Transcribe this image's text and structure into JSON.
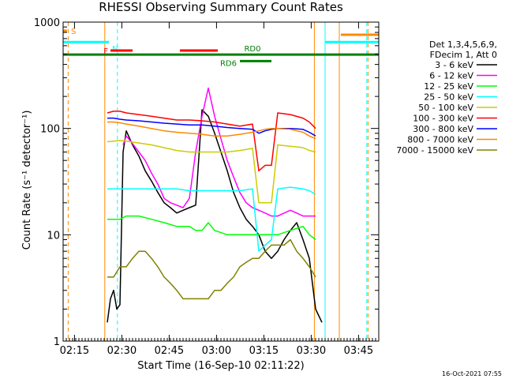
{
  "chart_data": {
    "type": "line",
    "title": "RHESSI Observing Summary Count Rates",
    "xlabel": "Start Time (16-Sep-10 02:11:22)",
    "ylabel": "Count Rate (s⁻¹ detector⁻¹)",
    "ylog": true,
    "ylim": [
      1,
      1000
    ],
    "xlim_minutes": [
      0,
      100
    ],
    "x_ticks": [
      {
        "label": "02:15",
        "t": 3.6
      },
      {
        "label": "02:30",
        "t": 18.6
      },
      {
        "label": "02:45",
        "t": 33.6
      },
      {
        "label": "03:00",
        "t": 48.6
      },
      {
        "label": "03:15",
        "t": 63.6
      },
      {
        "label": "03:30",
        "t": 78.6
      },
      {
        "label": "03:45",
        "t": 93.6
      }
    ],
    "y_ticks": [
      {
        "label": "1",
        "v": 1
      },
      {
        "label": "10",
        "v": 10
      },
      {
        "label": "100",
        "v": 100
      },
      {
        "label": "1000",
        "v": 1000
      }
    ],
    "legend_header": [
      "Det 1,3,4,5,6,9,",
      "FDecim 1, Att 0"
    ],
    "legend_placement": "right",
    "series": [
      {
        "name": "3 - 6 keV",
        "color": "#000000",
        "x": [
          14,
          15,
          16,
          17,
          18,
          19,
          20,
          22,
          24,
          26,
          28,
          30,
          32,
          34,
          36,
          38,
          40,
          42,
          44,
          46,
          48,
          50,
          52,
          54,
          56,
          58,
          60,
          62,
          64,
          66,
          68,
          70,
          72,
          74,
          76,
          78,
          80,
          82
        ],
        "y": [
          1.5,
          2.5,
          3,
          2,
          2.2,
          60,
          95,
          70,
          55,
          40,
          32,
          25,
          20,
          18,
          16,
          17,
          18,
          19,
          150,
          130,
          90,
          60,
          40,
          25,
          18,
          14,
          12,
          10,
          7,
          6,
          7,
          9,
          11,
          13,
          9,
          6,
          2,
          1.5
        ]
      },
      {
        "name": "6 - 12 keV",
        "color": "#ff00ff",
        "x": [
          19,
          20,
          22,
          24,
          26,
          28,
          30,
          32,
          34,
          36,
          38,
          40,
          42,
          44,
          46,
          48,
          50,
          52,
          54,
          56,
          58,
          60,
          62,
          64,
          66,
          68,
          70,
          72,
          74,
          76,
          78,
          80
        ],
        "y": [
          70,
          85,
          72,
          60,
          50,
          38,
          30,
          22,
          20,
          19,
          18,
          22,
          60,
          130,
          240,
          130,
          80,
          50,
          35,
          25,
          20,
          18,
          17,
          16,
          15,
          15,
          16,
          17,
          16,
          15,
          15,
          15
        ]
      },
      {
        "name": "12 - 25 keV",
        "color": "#00ff00",
        "x": [
          14,
          16,
          18,
          20,
          24,
          28,
          32,
          36,
          40,
          42,
          44,
          46,
          48,
          52,
          56,
          60,
          64,
          66,
          68,
          72,
          76,
          78,
          80
        ],
        "y": [
          14,
          14,
          14,
          15,
          15,
          14,
          13,
          12,
          12,
          11,
          11,
          13,
          11,
          10,
          10,
          10,
          10,
          10,
          10,
          11,
          12,
          10,
          9
        ]
      },
      {
        "name": "25 - 50 keV",
        "color": "#00ffff",
        "x": [
          14,
          16,
          18,
          20,
          24,
          28,
          32,
          36,
          40,
          44,
          48,
          52,
          56,
          60,
          62,
          64,
          66,
          68,
          72,
          76,
          78,
          80
        ],
        "y": [
          27,
          27,
          27,
          27,
          27,
          27,
          27,
          27,
          26,
          26,
          26,
          26,
          26,
          27,
          7,
          8,
          9,
          27,
          28,
          27,
          26,
          24
        ]
      },
      {
        "name": "50 - 100 keV",
        "color": "#cccc00",
        "x": [
          14,
          16,
          18,
          20,
          24,
          28,
          32,
          36,
          40,
          44,
          48,
          52,
          56,
          60,
          62,
          64,
          66,
          68,
          72,
          76,
          78,
          80
        ],
        "y": [
          75,
          76,
          77,
          76,
          73,
          70,
          66,
          62,
          60,
          60,
          60,
          60,
          62,
          65,
          20,
          20,
          20,
          70,
          68,
          66,
          62,
          60
        ]
      },
      {
        "name": "100 - 300 keV",
        "color": "#ff0000",
        "x": [
          14,
          16,
          18,
          20,
          24,
          28,
          32,
          36,
          40,
          44,
          48,
          52,
          56,
          60,
          62,
          64,
          66,
          68,
          72,
          76,
          78,
          80
        ],
        "y": [
          140,
          145,
          145,
          140,
          135,
          130,
          125,
          120,
          120,
          118,
          115,
          110,
          105,
          110,
          40,
          45,
          45,
          140,
          135,
          125,
          115,
          100
        ]
      },
      {
        "name": "300 - 800 keV",
        "color": "#0000ff",
        "x": [
          14,
          16,
          18,
          20,
          24,
          28,
          32,
          36,
          40,
          44,
          48,
          52,
          56,
          60,
          62,
          64,
          66,
          68,
          72,
          76,
          78,
          80
        ],
        "y": [
          125,
          125,
          122,
          120,
          118,
          115,
          112,
          110,
          108,
          108,
          105,
          102,
          100,
          98,
          90,
          95,
          98,
          100,
          100,
          98,
          92,
          85
        ]
      },
      {
        "name": "800 - 7000 keV",
        "color": "#ff8800",
        "x": [
          14,
          16,
          18,
          20,
          24,
          28,
          32,
          36,
          40,
          44,
          48,
          52,
          56,
          60,
          62,
          64,
          66,
          68,
          72,
          76,
          78,
          80
        ],
        "y": [
          115,
          115,
          113,
          110,
          105,
          100,
          95,
          92,
          90,
          88,
          85,
          85,
          88,
          92,
          95,
          98,
          100,
          100,
          98,
          92,
          85,
          80
        ]
      },
      {
        "name": "7000 - 15000 keV",
        "color": "#808000",
        "x": [
          14,
          16,
          18,
          20,
          22,
          24,
          26,
          28,
          30,
          32,
          34,
          36,
          38,
          40,
          42,
          44,
          46,
          48,
          50,
          52,
          54,
          56,
          58,
          60,
          62,
          64,
          66,
          68,
          70,
          72,
          74,
          76,
          78,
          80
        ],
        "y": [
          4,
          4,
          5,
          5,
          6,
          7,
          7,
          6,
          5,
          4,
          3.5,
          3,
          2.5,
          2.5,
          2.5,
          2.5,
          2.5,
          3,
          3,
          3.5,
          4,
          5,
          5.5,
          6,
          6,
          7,
          8,
          8,
          8,
          9,
          7,
          6,
          5,
          4
        ]
      }
    ],
    "annotations": {
      "intervals": [
        {
          "label": "S",
          "color": "#ff8800",
          "t0": 0,
          "t1": 1.2,
          "level": 830
        },
        {
          "label": "N",
          "color": "#00ffff",
          "t0": 0,
          "t1": 14.5,
          "level": 650
        },
        {
          "label": "",
          "color": "#00ffff",
          "t0": 83,
          "t1": 100,
          "level": 650
        },
        {
          "label": "",
          "color": "#ff8800",
          "t0": 88,
          "t1": 100,
          "level": 760
        },
        {
          "label": "F",
          "color": "#ff0000",
          "t0": 15,
          "t1": 22,
          "level": 540
        },
        {
          "label": "",
          "color": "#ff0000",
          "t0": 37,
          "t1": 49,
          "level": 540
        },
        {
          "label": "RD0",
          "color": "#008000",
          "t0": 0,
          "t1": 100,
          "level": 495
        },
        {
          "label": "RD6",
          "color": "#008000",
          "t0": 56,
          "t1": 66,
          "level": 430
        }
      ],
      "vlines": [
        {
          "color": "#ff8800",
          "t": 1.6,
          "dashed": true
        },
        {
          "color": "#ff8800",
          "t": 13.2,
          "dashed": false
        },
        {
          "color": "#00ffff",
          "t": 17.2,
          "dashed": true
        },
        {
          "color": "#00ffff",
          "t": 83.0,
          "dashed": false
        },
        {
          "color": "#ff8800",
          "t": 79.6,
          "dashed": false
        },
        {
          "color": "#ff8800",
          "t": 87.5,
          "dashed": false
        },
        {
          "color": "#00ffff",
          "t": 96.2,
          "dashed": true
        },
        {
          "color": "#ff8800",
          "t": 96.6,
          "dashed": true
        }
      ]
    }
  },
  "footer": {
    "timestamp": "16-Oct-2021 07:55"
  }
}
